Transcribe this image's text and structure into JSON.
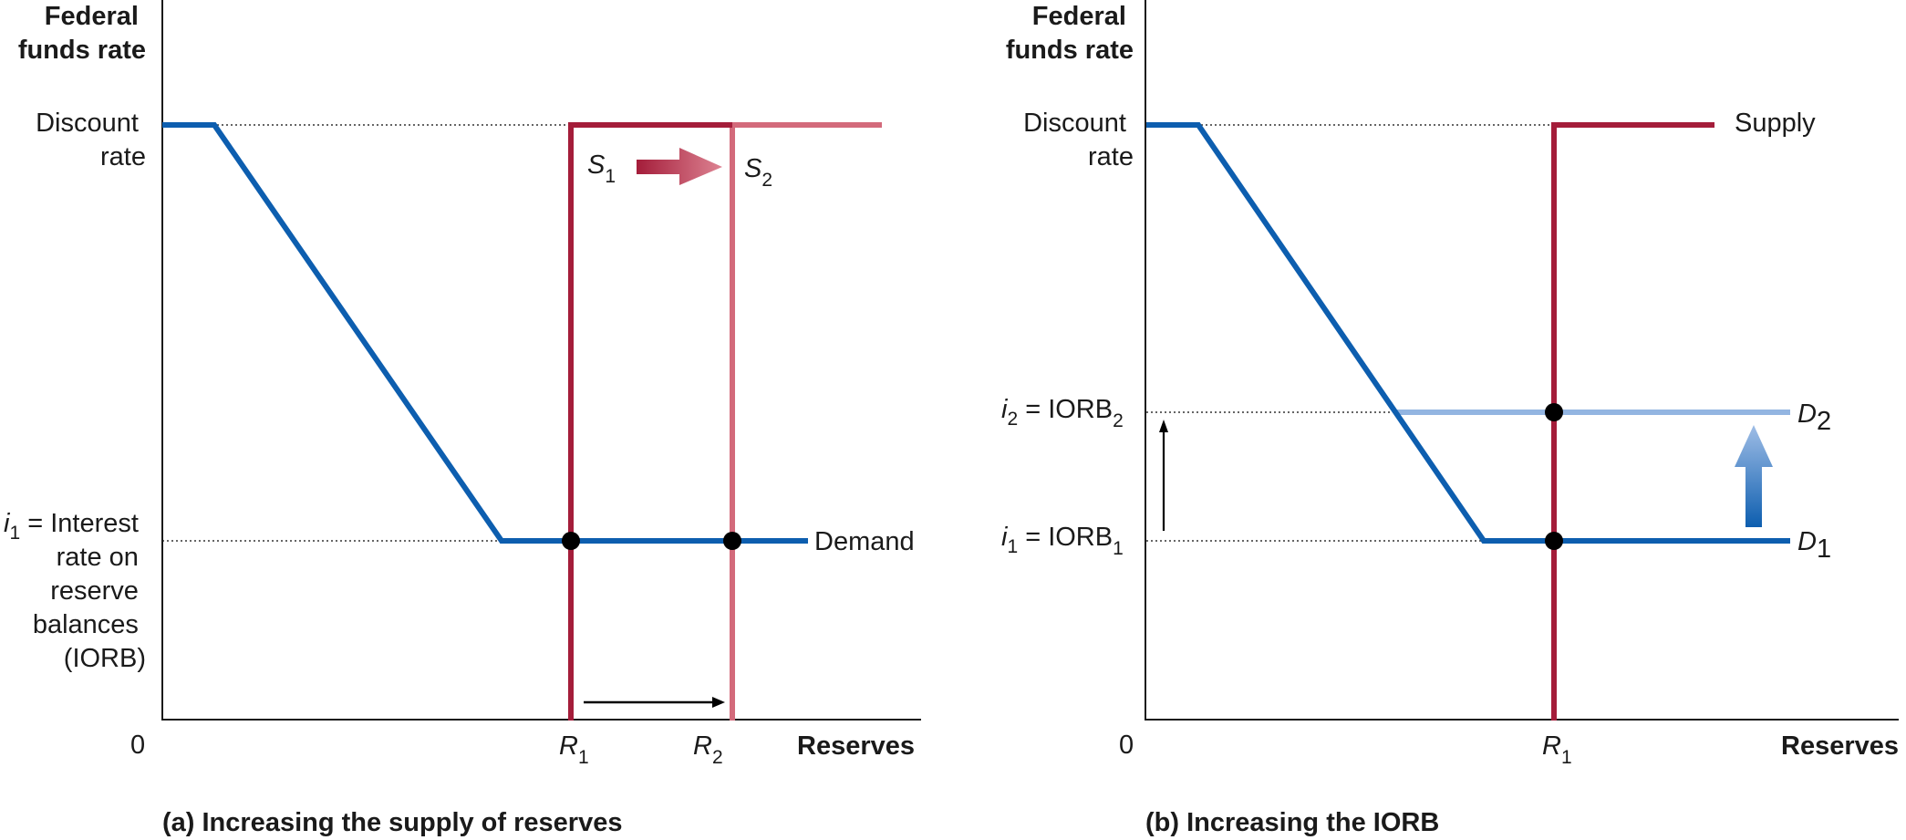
{
  "colors": {
    "demand": "#0d5eaf",
    "demand_new": "#93b5e1",
    "supply": "#a41d3a",
    "supply_new": "#d36a7b",
    "axis": "#1a1a1a"
  },
  "panel_a": {
    "y_axis_title": [
      "Federal",
      "funds rate"
    ],
    "discount_rate_label": [
      "Discount",
      "rate"
    ],
    "iorb_label_var": "i",
    "iorb_label_sub": "1",
    "iorb_label_lines": [
      " = Interest",
      "rate on",
      "reserve",
      "balances",
      "(IORB)"
    ],
    "origin": "0",
    "x_axis_title": "Reserves",
    "tick_r1": {
      "main": "R",
      "sub": "1"
    },
    "tick_r2": {
      "main": "R",
      "sub": "2"
    },
    "s1": {
      "main": "S",
      "sub": "1"
    },
    "s2": {
      "main": "S",
      "sub": "2"
    },
    "demand_label": "Demand",
    "caption": "(a) Increasing the supply of reserves"
  },
  "panel_b": {
    "y_axis_title": [
      "Federal",
      "funds rate"
    ],
    "discount_rate_label": [
      "Discount",
      "rate"
    ],
    "i2_label": {
      "var": "i",
      "sub": "2",
      "rest": " = IORB",
      "rest_sub": "2"
    },
    "i1_label": {
      "var": "i",
      "sub": "1",
      "rest": " = IORB",
      "rest_sub": "1"
    },
    "origin": "0",
    "x_axis_title": "Reserves",
    "tick_r1": {
      "main": "R",
      "sub": "1"
    },
    "supply_label": "Supply",
    "d2": {
      "main": "D",
      "sub": "2"
    },
    "d1": {
      "main": "D",
      "sub": "1"
    },
    "caption": "(b) Increasing the IORB"
  }
}
